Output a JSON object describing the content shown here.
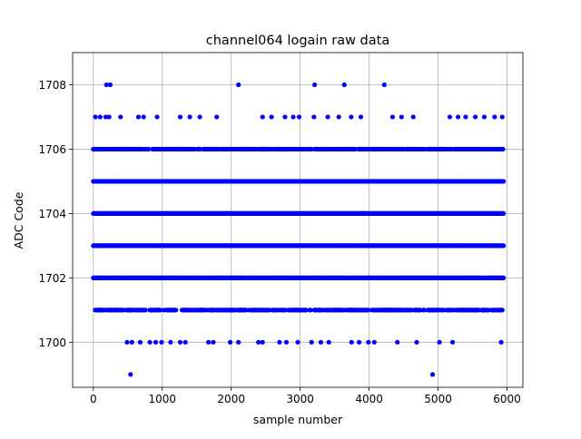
{
  "chart_data": {
    "type": "scatter",
    "title": "channel064 logain raw data",
    "xlabel": "sample number",
    "ylabel": "ADC Code",
    "xlim": [
      -300,
      6230
    ],
    "ylim": [
      1698.6,
      1709.0
    ],
    "xticks": [
      0,
      1000,
      2000,
      3000,
      4000,
      5000,
      6000
    ],
    "xtick_labels": [
      "0",
      "1000",
      "2000",
      "3000",
      "4000",
      "5000",
      "6000"
    ],
    "yticks": [
      1700,
      1702,
      1704,
      1706,
      1708
    ],
    "ytick_labels": [
      "1700",
      "1702",
      "1704",
      "1706",
      "1708"
    ],
    "grid": true,
    "marker_color": "#0000ff",
    "x_range": [
      0,
      5950
    ],
    "series": [
      {
        "points": [
          [
            190,
            1708
          ],
          [
            245,
            1708
          ],
          [
            2105,
            1708
          ],
          [
            3210,
            1708
          ],
          [
            3640,
            1708
          ],
          [
            4220,
            1708
          ],
          [
            540,
            1699
          ],
          [
            4920,
            1699
          ],
          [
            30,
            1707
          ],
          [
            100,
            1707
          ],
          [
            180,
            1707
          ],
          [
            230,
            1707
          ],
          [
            395,
            1707
          ],
          [
            655,
            1707
          ],
          [
            730,
            1707
          ],
          [
            925,
            1707
          ],
          [
            1260,
            1707
          ],
          [
            1400,
            1707
          ],
          [
            1545,
            1707
          ],
          [
            1790,
            1707
          ],
          [
            2455,
            1707
          ],
          [
            2585,
            1707
          ],
          [
            2780,
            1707
          ],
          [
            2900,
            1707
          ],
          [
            2985,
            1707
          ],
          [
            3200,
            1707
          ],
          [
            3400,
            1707
          ],
          [
            3560,
            1707
          ],
          [
            3740,
            1707
          ],
          [
            3880,
            1707
          ],
          [
            4340,
            1707
          ],
          [
            4470,
            1707
          ],
          [
            4640,
            1707
          ],
          [
            5170,
            1707
          ],
          [
            5290,
            1707
          ],
          [
            5400,
            1707
          ],
          [
            5540,
            1707
          ],
          [
            5670,
            1707
          ],
          [
            5820,
            1707
          ],
          [
            5930,
            1707
          ],
          [
            490,
            1700
          ],
          [
            560,
            1700
          ],
          [
            680,
            1700
          ],
          [
            820,
            1700
          ],
          [
            905,
            1700
          ],
          [
            990,
            1700
          ],
          [
            1120,
            1700
          ],
          [
            1260,
            1700
          ],
          [
            1335,
            1700
          ],
          [
            1670,
            1700
          ],
          [
            1740,
            1700
          ],
          [
            1985,
            1700
          ],
          [
            2105,
            1700
          ],
          [
            2395,
            1700
          ],
          [
            2455,
            1700
          ],
          [
            2700,
            1700
          ],
          [
            2800,
            1700
          ],
          [
            2965,
            1700
          ],
          [
            3165,
            1700
          ],
          [
            3300,
            1700
          ],
          [
            3415,
            1700
          ],
          [
            3745,
            1700
          ],
          [
            3855,
            1700
          ],
          [
            3990,
            1700
          ],
          [
            4075,
            1700
          ],
          [
            4410,
            1700
          ],
          [
            4690,
            1700
          ],
          [
            5020,
            1700
          ],
          [
            5210,
            1700
          ],
          [
            5915,
            1700
          ]
        ],
        "dense_levels": [
          {
            "y": 1706,
            "coverage": 0.7
          },
          {
            "y": 1705,
            "coverage": 1.0
          },
          {
            "y": 1704,
            "coverage": 1.0
          },
          {
            "y": 1703,
            "coverage": 1.0
          },
          {
            "y": 1702,
            "coverage": 0.95
          },
          {
            "y": 1701,
            "coverage": 0.6
          }
        ]
      }
    ]
  }
}
